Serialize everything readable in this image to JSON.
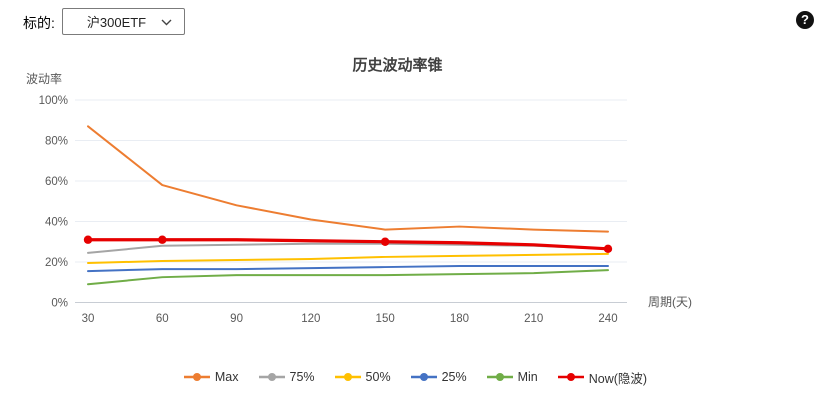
{
  "header": {
    "underlying_label": "标的:",
    "underlying_value": "沪300ETF",
    "help_label": "?"
  },
  "chart_data": {
    "type": "line",
    "title": "历史波动率锥",
    "xlabel": "周期(天)",
    "ylabel": "波动率",
    "x": [
      30,
      60,
      90,
      120,
      150,
      180,
      210,
      240
    ],
    "xlim": [
      30,
      240
    ],
    "ylim": [
      0,
      100
    ],
    "ytick_labels": [
      "0%",
      "20%",
      "40%",
      "60%",
      "80%",
      "100%"
    ],
    "grid": true,
    "legend_position": "bottom",
    "axis_color": "#c8cdd4",
    "grid_color": "#e9edf3",
    "tick_label_color": "#595959",
    "series": [
      {
        "name": "Max",
        "color": "#ED7D31",
        "width": 2,
        "values": [
          87,
          58,
          48,
          41,
          36,
          37.5,
          36,
          35
        ]
      },
      {
        "name": "75%",
        "color": "#A5A5A5",
        "width": 2,
        "values": [
          24.5,
          28,
          28.5,
          29,
          29,
          28.5,
          28,
          26.5
        ]
      },
      {
        "name": "50%",
        "color": "#FFC000",
        "width": 2,
        "values": [
          19.5,
          20.5,
          21,
          21.5,
          22.5,
          23,
          23.5,
          24
        ]
      },
      {
        "name": "25%",
        "color": "#4472C4",
        "width": 2,
        "values": [
          15.5,
          16.5,
          16.5,
          17,
          17.5,
          18,
          18,
          18
        ]
      },
      {
        "name": "Min",
        "color": "#70AD47",
        "width": 2,
        "values": [
          9,
          12.5,
          13.5,
          13.5,
          13.5,
          14,
          14.5,
          16
        ]
      },
      {
        "name": "Now(隐波)",
        "color": "#E60000",
        "width": 3.2,
        "values": [
          31,
          31,
          31,
          30.5,
          30,
          29.5,
          28.5,
          26.5
        ],
        "markers_at": [
          30,
          60,
          150,
          240
        ]
      }
    ]
  }
}
